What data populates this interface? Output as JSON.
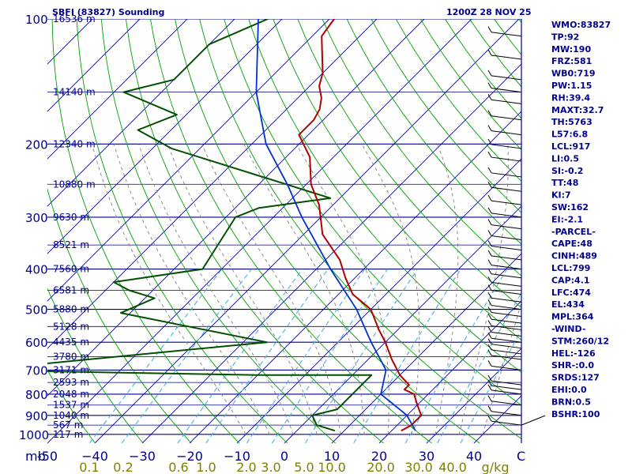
{
  "header": {
    "station": "SBFI (83827) Sounding",
    "time": "1200Z 28 NOV 25"
  },
  "chart_data": {
    "type": "skew-t",
    "pressure_levels": [
      100,
      200,
      300,
      400,
      500,
      600,
      700,
      800,
      900,
      1000
    ],
    "height_labels": [
      {
        "p": 100,
        "h": "16536 m"
      },
      {
        "p": 150,
        "h": "14140 m"
      },
      {
        "p": 200,
        "h": "12340 m"
      },
      {
        "p": 250,
        "h": "10880 m"
      },
      {
        "p": 300,
        "h": "9630 m"
      },
      {
        "p": 350,
        "h": "8521 m"
      },
      {
        "p": 400,
        "h": "7560 m"
      },
      {
        "p": 450,
        "h": "6581 m"
      },
      {
        "p": 500,
        "h": "5880 m"
      },
      {
        "p": 550,
        "h": "5128 m"
      },
      {
        "p": 600,
        "h": "4435 m"
      },
      {
        "p": 650,
        "h": "3780 m"
      },
      {
        "p": 700,
        "h": "3171 m"
      },
      {
        "p": 750,
        "h": "2593 m"
      },
      {
        "p": 800,
        "h": "2048 m"
      },
      {
        "p": 850,
        "h": "1537 m"
      },
      {
        "p": 900,
        "h": "1040 m"
      },
      {
        "p": 950,
        "h": "567 m"
      },
      {
        "p": 1000,
        "h": "117 m"
      }
    ],
    "temp_axis_label": "mb",
    "temp_ticks": [
      -50,
      -40,
      -30,
      -20,
      -10,
      0,
      10,
      20,
      30,
      40
    ],
    "temp_tick_labels": [
      "-50",
      "−40",
      "−30",
      "−20",
      "−10",
      "0",
      "10",
      "20",
      "30",
      "40"
    ],
    "temp_axis_end": "C",
    "mixing_ratio_labels": [
      "0.1",
      "0.2",
      "0.6",
      "1.0",
      "2.0",
      "3.0",
      "5.0",
      "10.0",
      "20.0",
      "30.0",
      "40.0",
      "g/kg"
    ],
    "temperature": [
      {
        "p": 100,
        "t": -79
      },
      {
        "p": 110,
        "t": -78
      },
      {
        "p": 125,
        "t": -73
      },
      {
        "p": 135,
        "t": -70
      },
      {
        "p": 145,
        "t": -68
      },
      {
        "p": 155,
        "t": -65
      },
      {
        "p": 165,
        "t": -63
      },
      {
        "p": 175,
        "t": -62
      },
      {
        "p": 190,
        "t": -62
      },
      {
        "p": 215,
        "t": -55
      },
      {
        "p": 250,
        "t": -49
      },
      {
        "p": 280,
        "t": -43
      },
      {
        "p": 330,
        "t": -36
      },
      {
        "p": 380,
        "t": -27
      },
      {
        "p": 420,
        "t": -22
      },
      {
        "p": 460,
        "t": -17
      },
      {
        "p": 500,
        "t": -10
      },
      {
        "p": 560,
        "t": -4
      },
      {
        "p": 600,
        "t": 0
      },
      {
        "p": 660,
        "t": 5
      },
      {
        "p": 720,
        "t": 10
      },
      {
        "p": 760,
        "t": 14
      },
      {
        "p": 780,
        "t": 14
      },
      {
        "p": 800,
        "t": 17
      },
      {
        "p": 850,
        "t": 20
      },
      {
        "p": 900,
        "t": 23
      },
      {
        "p": 950,
        "t": 23
      },
      {
        "p": 980,
        "t": 22
      }
    ],
    "dewpoint": [
      {
        "p": 100,
        "t": -93
      },
      {
        "p": 115,
        "t": -100
      },
      {
        "p": 140,
        "t": -100
      },
      {
        "p": 150,
        "t": -108
      },
      {
        "p": 170,
        "t": -92
      },
      {
        "p": 185,
        "t": -97
      },
      {
        "p": 205,
        "t": -86
      },
      {
        "p": 270,
        "t": -42
      },
      {
        "p": 285,
        "t": -55
      },
      {
        "p": 300,
        "t": -58
      },
      {
        "p": 400,
        "t": -54
      },
      {
        "p": 430,
        "t": -70
      },
      {
        "p": 450,
        "t": -65
      },
      {
        "p": 470,
        "t": -58
      },
      {
        "p": 510,
        "t": -62
      },
      {
        "p": 600,
        "t": -25
      },
      {
        "p": 700,
        "t": -80
      },
      {
        "p": 720,
        "t": -20
      },
      {
        "p": 720,
        "t": 4
      },
      {
        "p": 800,
        "t": 4
      },
      {
        "p": 870,
        "t": 4
      },
      {
        "p": 900,
        "t": 0
      },
      {
        "p": 950,
        "t": 3
      },
      {
        "p": 980,
        "t": 8
      }
    ],
    "parcel": [
      {
        "p": 100,
        "t": -95
      },
      {
        "p": 150,
        "t": -80
      },
      {
        "p": 200,
        "t": -67
      },
      {
        "p": 250,
        "t": -54
      },
      {
        "p": 300,
        "t": -44
      },
      {
        "p": 400,
        "t": -27
      },
      {
        "p": 500,
        "t": -13
      },
      {
        "p": 600,
        "t": -3
      },
      {
        "p": 700,
        "t": 6
      },
      {
        "p": 800,
        "t": 10
      },
      {
        "p": 900,
        "t": 20
      },
      {
        "p": 980,
        "t": 25
      }
    ],
    "colors": {
      "isobar": "#00008b",
      "isotherm": "#00008b",
      "dry_adiabat": "#00a000",
      "moist_adiabat": "#808080",
      "mixing_ratio": "#4ab0e0",
      "temperature": "#b00000",
      "dewpoint": "#005000",
      "parcel": "#0033cc",
      "wind": "#000000"
    }
  },
  "indices": [
    "WMO:83827",
    "TP:92",
    "MW:190",
    "FRZ:581",
    "WB0:719",
    "PW:1.15",
    "RH:39.4",
    "MAXT:32.7",
    "TH:5763",
    "L57:6.8",
    "LCL:917",
    "LI:0.5",
    "SI:-0.2",
    "TT:48",
    "KI:7",
    "SW:162",
    "EI:-2.1",
    "-PARCEL-",
    "CAPE:48",
    "CINH:489",
    "LCL:799",
    "CAP:4.1",
    "LFC:474",
    "EL:434",
    "MPL:364",
    "-WIND-",
    "STM:260/12",
    "HEL:-126",
    "SHR-:0.0",
    "SRDS:127",
    "EHI:0.0",
    "BRN:0.5",
    "BSHR:100"
  ]
}
